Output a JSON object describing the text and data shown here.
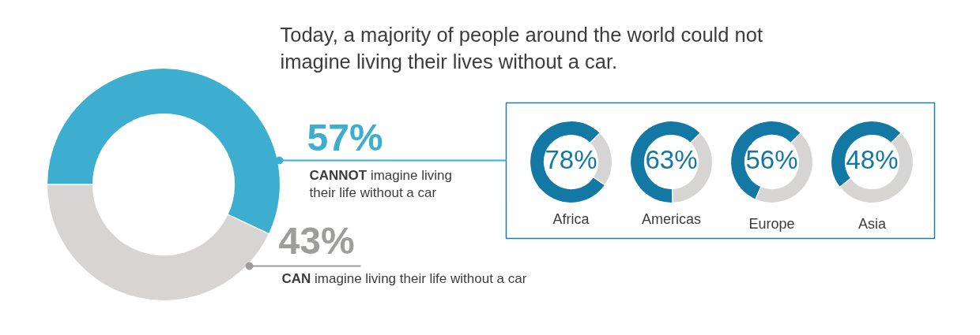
{
  "chart_data": [
    {
      "type": "donut",
      "title": "Africa",
      "categories": [
        null,
        null
      ],
      "values": [
        78,
        22
      ],
      "colors": [
        "#1478a4",
        "#d6d5d4"
      ],
      "value_labels": [
        "78%",
        null
      ]
    },
    {
      "type": "donut",
      "title": "Americas",
      "categories": [
        null,
        null
      ],
      "values": [
        63,
        37
      ],
      "colors": [
        "#1478a4",
        "#d6d5d4"
      ],
      "value_labels": [
        "63%",
        null
      ]
    },
    {
      "type": "donut",
      "title": "Europe",
      "categories": [
        null,
        null
      ],
      "values": [
        56,
        44
      ],
      "colors": [
        "#1478a4",
        "#d6d5d4"
      ],
      "value_labels": [
        "56%",
        null
      ]
    },
    {
      "type": "donut",
      "title": "Asia",
      "categories": [
        null,
        null
      ],
      "values": [
        48,
        52
      ],
      "colors": [
        "#1478a4",
        "#d6d5d4"
      ],
      "value_labels": [
        "48%",
        null
      ]
    },
    {
      "type": "donut",
      "title": "Today, a majority of people around the world could not imagine living their lives without a car.",
      "categories": [
        "CANNOT imagine living their life without a car",
        "CAN imagine living their life without a car"
      ],
      "values": [
        57,
        43
      ],
      "colors": [
        "#3daed0",
        "#d6d5d4"
      ],
      "value_labels": [
        "57%",
        "43%"
      ]
    }
  ]
}
